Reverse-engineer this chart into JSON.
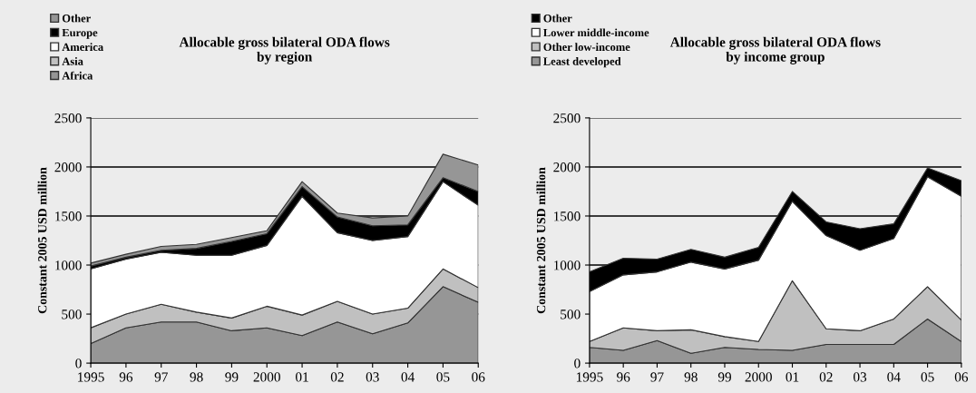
{
  "chart_data": [
    {
      "type": "area",
      "stacked": true,
      "title": "Allocable gross bilateral ODA flows\nby region",
      "ylabel": "Constant 2005 USD million",
      "categories": [
        "1995",
        "96",
        "97",
        "98",
        "99",
        "2000",
        "01",
        "02",
        "03",
        "04",
        "05",
        "06"
      ],
      "ylim": [
        0,
        2500
      ],
      "yticks": [
        0,
        500,
        1000,
        1500,
        2000,
        2500
      ],
      "grid": "y",
      "legend": "top left",
      "series": [
        {
          "name": "Africa",
          "color": "#969696",
          "values": [
            200,
            360,
            420,
            420,
            330,
            360,
            280,
            420,
            300,
            410,
            780,
            620
          ]
        },
        {
          "name": "Asia",
          "color": "#c0c0c0",
          "values": [
            160,
            140,
            180,
            100,
            130,
            220,
            210,
            210,
            200,
            150,
            180,
            150
          ]
        },
        {
          "name": "America",
          "color": "#ffffff",
          "values": [
            600,
            560,
            530,
            580,
            640,
            620,
            1210,
            700,
            750,
            730,
            890,
            840
          ]
        },
        {
          "name": "Europe",
          "color": "#000000",
          "values": [
            30,
            20,
            20,
            70,
            140,
            120,
            100,
            160,
            150,
            120,
            40,
            140
          ]
        },
        {
          "name": "Other",
          "color": "#969696",
          "values": [
            30,
            30,
            40,
            40,
            40,
            30,
            50,
            40,
            80,
            90,
            240,
            270
          ]
        }
      ]
    },
    {
      "type": "area",
      "stacked": true,
      "title": "Allocable gross bilateral ODA flows\nby income group",
      "ylabel": "Constant 2005 USD million",
      "categories": [
        "1995",
        "96",
        "97",
        "98",
        "99",
        "2000",
        "01",
        "02",
        "03",
        "04",
        "05",
        "06"
      ],
      "ylim": [
        0,
        2500
      ],
      "yticks": [
        0,
        500,
        1000,
        1500,
        2000,
        2500
      ],
      "grid": "y",
      "legend": "top left",
      "series": [
        {
          "name": "Least developed",
          "color": "#969696",
          "values": [
            160,
            130,
            230,
            100,
            160,
            140,
            130,
            190,
            190,
            190,
            450,
            220
          ]
        },
        {
          "name": "Other low-income",
          "color": "#c0c0c0",
          "values": [
            60,
            230,
            100,
            240,
            110,
            80,
            710,
            160,
            140,
            260,
            330,
            220
          ]
        },
        {
          "name": "Lower middle-income",
          "color": "#ffffff",
          "values": [
            510,
            540,
            600,
            690,
            690,
            830,
            810,
            950,
            820,
            820,
            1120,
            1260
          ]
        },
        {
          "name": "Other",
          "color": "#000000",
          "values": [
            200,
            170,
            130,
            130,
            120,
            130,
            100,
            140,
            220,
            150,
            90,
            160
          ]
        }
      ]
    }
  ]
}
